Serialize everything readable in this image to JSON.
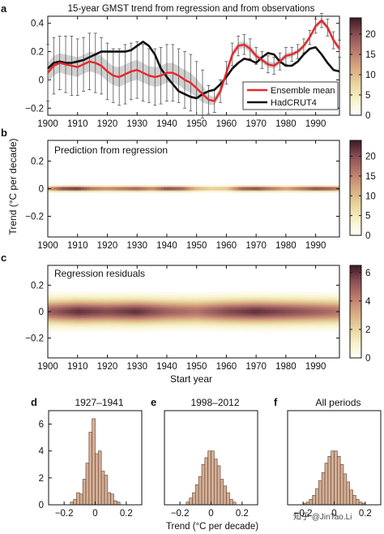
{
  "figure": {
    "title": "15-year GMST trend from regression and from observations",
    "ylabel": "Trend (°C per decade)",
    "xlabel": "Start year",
    "hist_xlabel": "Trend (°C per decade)",
    "watermark": "知乎 @JinTao.Li"
  },
  "colors": {
    "ensemble": "#e8262b",
    "observations": "#111111",
    "hist_fill": "#d5ae95",
    "hist_edge": "#6b5040",
    "colormap": [
      "#ffffff",
      "#f7f1c6",
      "#e7d39c",
      "#d8a781",
      "#b97a6d",
      "#8a4f55",
      "#3d1b24"
    ]
  },
  "chart_data": [
    {
      "id": "a",
      "panel_label": "a",
      "type": "line",
      "title": "15-year GMST trend from regression and from observations",
      "xlabel": "",
      "ylabel": "Trend (°C per decade)",
      "xlim": [
        1900,
        1998
      ],
      "ylim": [
        -0.25,
        0.45
      ],
      "xticks": [
        1900,
        1910,
        1920,
        1930,
        1940,
        1950,
        1960,
        1970,
        1980,
        1990
      ],
      "yticks": [
        -0.2,
        0,
        0.2,
        0.4
      ],
      "ytick_labels": [
        "−0.2",
        "0",
        "0.2",
        "0.4"
      ],
      "legend_position": "lower-right",
      "series": [
        {
          "name": "Ensemble mean",
          "color": "#e8262b",
          "x": [
            1900,
            1902,
            1904,
            1906,
            1908,
            1910,
            1912,
            1914,
            1916,
            1918,
            1920,
            1922,
            1924,
            1926,
            1928,
            1930,
            1932,
            1934,
            1936,
            1938,
            1940,
            1942,
            1944,
            1946,
            1948,
            1950,
            1952,
            1954,
            1956,
            1958,
            1960,
            1962,
            1964,
            1966,
            1968,
            1970,
            1972,
            1974,
            1976,
            1978,
            1980,
            1982,
            1984,
            1986,
            1988,
            1990,
            1992,
            1994,
            1996,
            1998
          ],
          "y": [
            0.05,
            0.1,
            0.12,
            0.11,
            0.1,
            0.09,
            0.11,
            0.13,
            0.12,
            0.1,
            0.06,
            0.03,
            0.02,
            0.04,
            0.06,
            0.07,
            0.05,
            0.03,
            0.02,
            0.03,
            0.05,
            0.05,
            0.03,
            0.0,
            -0.02,
            -0.06,
            -0.1,
            -0.14,
            -0.15,
            -0.08,
            0.05,
            0.18,
            0.24,
            0.25,
            0.22,
            0.17,
            0.14,
            0.11,
            0.1,
            0.13,
            0.17,
            0.18,
            0.2,
            0.24,
            0.3,
            0.38,
            0.42,
            0.37,
            0.28,
            0.22
          ]
        },
        {
          "name": "HadCRUT4",
          "color": "#111111",
          "x": [
            1900,
            1902,
            1904,
            1906,
            1908,
            1910,
            1912,
            1914,
            1916,
            1918,
            1920,
            1922,
            1924,
            1926,
            1928,
            1930,
            1932,
            1934,
            1936,
            1938,
            1940,
            1942,
            1944,
            1946,
            1948,
            1950,
            1952,
            1954,
            1956,
            1958,
            1960,
            1962,
            1964,
            1966,
            1968,
            1970,
            1972,
            1974,
            1976,
            1978,
            1980,
            1982,
            1984,
            1986,
            1988,
            1990,
            1992,
            1994,
            1996,
            1998
          ],
          "y": [
            0.08,
            0.12,
            0.13,
            0.12,
            0.12,
            0.13,
            0.14,
            0.16,
            0.18,
            0.2,
            0.2,
            0.2,
            0.2,
            0.2,
            0.21,
            0.24,
            0.27,
            0.24,
            0.18,
            0.08,
            0.02,
            -0.03,
            -0.08,
            -0.1,
            -0.12,
            -0.13,
            -0.1,
            -0.08,
            -0.07,
            -0.03,
            0.02,
            0.08,
            0.12,
            0.15,
            0.14,
            0.12,
            0.16,
            0.19,
            0.18,
            0.13,
            0.1,
            0.1,
            0.13,
            0.18,
            0.22,
            0.23,
            0.18,
            0.12,
            0.07,
            0.06
          ]
        }
      ],
      "error_bars": {
        "series": "Ensemble mean",
        "half_width": [
          0.2,
          0.2,
          0.19,
          0.2,
          0.21,
          0.2,
          0.19,
          0.2,
          0.21,
          0.2,
          0.2,
          0.19,
          0.2,
          0.21,
          0.2,
          0.2,
          0.2,
          0.19,
          0.2,
          0.2,
          0.2,
          0.2,
          0.19,
          0.2,
          0.2,
          0.19,
          0.17,
          0.1,
          0.08,
          0.08,
          0.08,
          0.08,
          0.07,
          0.07,
          0.07,
          0.06,
          0.06,
          0.06,
          0.06,
          0.06,
          0.06,
          0.05,
          0.05,
          0.05,
          0.05,
          0.05,
          0.05,
          0.06,
          0.06,
          0.06
        ]
      }
    },
    {
      "id": "b",
      "panel_label": "b",
      "type": "heatmap",
      "annotation": "Prediction from regression",
      "xlabel": "",
      "ylabel": "",
      "xlim": [
        1900,
        1998
      ],
      "ylim": [
        -0.35,
        0.35
      ],
      "xticks": [
        1900,
        1910,
        1920,
        1930,
        1940,
        1950,
        1960,
        1970,
        1980,
        1990
      ],
      "yticks": [
        -0.2,
        0,
        0.2
      ],
      "ytick_labels": [
        "−0.2",
        "0",
        "0.2"
      ],
      "colorbar": {
        "ticks": [
          0,
          5,
          10,
          15,
          20
        ],
        "max": 24
      },
      "spread_sd": 0.012,
      "center_x": [
        1900,
        1905,
        1910,
        1915,
        1920,
        1925,
        1930,
        1935,
        1940,
        1945,
        1950,
        1955,
        1960,
        1965,
        1970,
        1975,
        1980,
        1985,
        1990,
        1995,
        1998
      ],
      "center_y": [
        0,
        0,
        0,
        0,
        0,
        0,
        0,
        0,
        0,
        0,
        0,
        0,
        0,
        0,
        0,
        0,
        0,
        0,
        0,
        0,
        0
      ],
      "peak_density": [
        14,
        22,
        24,
        18,
        16,
        18,
        20,
        16,
        22,
        20,
        12,
        9,
        10,
        20,
        22,
        18,
        14,
        18,
        22,
        20,
        18
      ]
    },
    {
      "id": "c",
      "panel_label": "c",
      "type": "heatmap",
      "annotation": "Regression residuals",
      "xlabel": "Start year",
      "ylabel": "",
      "xlim": [
        1900,
        1998
      ],
      "ylim": [
        -0.35,
        0.35
      ],
      "xticks": [
        1900,
        1910,
        1920,
        1930,
        1940,
        1950,
        1960,
        1970,
        1980,
        1990
      ],
      "yticks": [
        -0.2,
        0,
        0.2
      ],
      "ytick_labels": [
        "−0.2",
        "0",
        "0.2"
      ],
      "colorbar": {
        "ticks": [
          0,
          2,
          4,
          6
        ],
        "max": 6.5
      },
      "spread_sd": 0.06,
      "center_x": [
        1900,
        1910,
        1920,
        1930,
        1940,
        1950,
        1960,
        1970,
        1980,
        1990,
        1998
      ],
      "center_y": [
        0,
        0,
        0,
        0,
        0,
        0,
        0,
        0,
        0,
        0,
        0
      ],
      "peak_density": [
        5,
        6,
        5.5,
        6,
        5,
        4.5,
        5.5,
        6,
        5.5,
        5,
        4.5
      ]
    },
    {
      "id": "d",
      "panel_label": "d",
      "type": "bar",
      "title": "1927–1941",
      "xlabel": "",
      "ylabel": "",
      "xlim": [
        -0.3,
        0.3
      ],
      "ylim": [
        0,
        7
      ],
      "xticks": [
        -0.2,
        0,
        0.2
      ],
      "xtick_labels": [
        "−0.2",
        "0",
        "0.2"
      ],
      "yticks": [
        0,
        2,
        4,
        6
      ],
      "bin_width": 0.02,
      "bin_centers": [
        -0.15,
        -0.13,
        -0.11,
        -0.09,
        -0.07,
        -0.05,
        -0.03,
        -0.01,
        0.01,
        0.03,
        0.05,
        0.07,
        0.09,
        0.11,
        0.13,
        0.15
      ],
      "values": [
        0.2,
        0.4,
        0.9,
        0.8,
        1.9,
        3.1,
        5.4,
        6.4,
        3.8,
        4.0,
        2.5,
        2.2,
        0.9,
        0.8,
        0.3,
        0.2
      ]
    },
    {
      "id": "e",
      "panel_label": "e",
      "type": "bar",
      "title": "1998–2012",
      "xlabel": "",
      "ylabel": "",
      "xlim": [
        -0.3,
        0.3
      ],
      "ylim": [
        0,
        7
      ],
      "xticks": [
        -0.2,
        0,
        0.2
      ],
      "xtick_labels": [
        "−0.2",
        "0",
        "0.2"
      ],
      "bin_width": 0.02,
      "bin_centers": [
        -0.15,
        -0.13,
        -0.11,
        -0.09,
        -0.07,
        -0.05,
        -0.03,
        -0.01,
        0.01,
        0.03,
        0.05,
        0.07,
        0.09,
        0.11,
        0.13,
        0.15
      ],
      "values": [
        0.2,
        0.5,
        0.9,
        1.5,
        2.1,
        3.0,
        3.5,
        4.0,
        4.0,
        3.4,
        2.9,
        1.9,
        1.4,
        0.9,
        0.4,
        0.2
      ]
    },
    {
      "id": "f",
      "panel_label": "f",
      "type": "bar",
      "title": "All periods",
      "xlabel": "",
      "ylabel": "",
      "xlim": [
        -0.3,
        0.3
      ],
      "ylim": [
        0,
        7
      ],
      "xticks": [
        -0.2,
        0,
        0.2
      ],
      "xtick_labels": [
        "−0.2",
        "0",
        "0.2"
      ],
      "bin_width": 0.02,
      "bin_centers": [
        -0.19,
        -0.17,
        -0.15,
        -0.13,
        -0.11,
        -0.09,
        -0.07,
        -0.05,
        -0.03,
        -0.01,
        0.01,
        0.03,
        0.05,
        0.07,
        0.09,
        0.11,
        0.13,
        0.15,
        0.17,
        0.19
      ],
      "values": [
        0.1,
        0.2,
        0.4,
        0.7,
        1.2,
        1.8,
        2.4,
        3.1,
        3.6,
        4.0,
        4.0,
        3.6,
        3.0,
        2.3,
        1.7,
        1.1,
        0.7,
        0.4,
        0.2,
        0.1
      ]
    }
  ]
}
